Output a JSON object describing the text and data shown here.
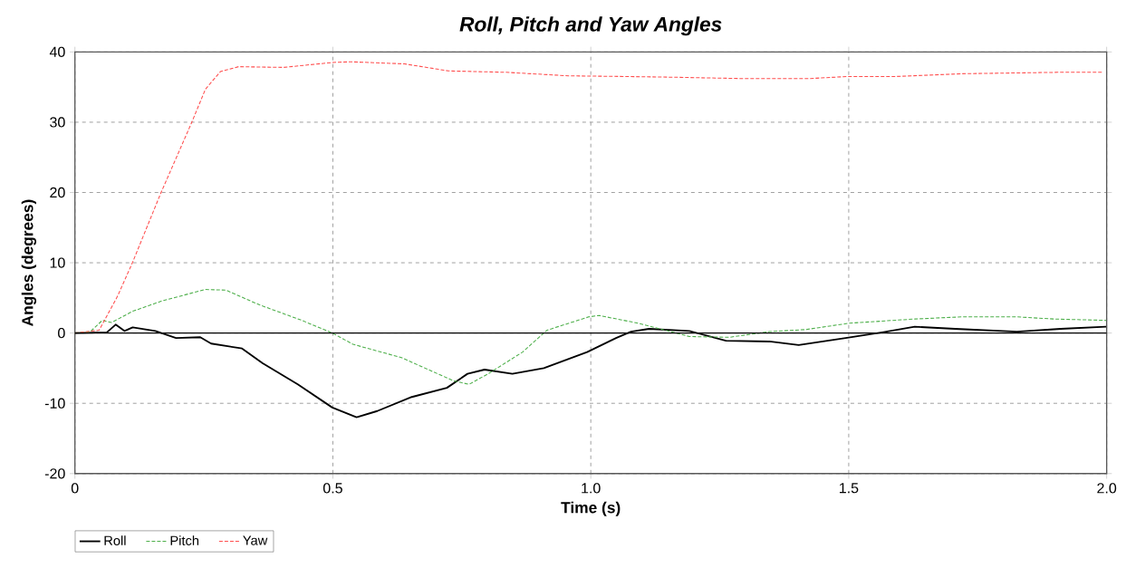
{
  "chart_data": {
    "type": "line",
    "title": "Roll, Pitch and Yaw Angles",
    "xlabel": "Time (s)",
    "ylabel": "Angles (degrees)",
    "xlim": [
      0,
      2.0
    ],
    "ylim": [
      -20,
      40
    ],
    "xticks": [
      {
        "value": 0,
        "label": "0"
      },
      {
        "value": 0.5,
        "label": "0.5"
      },
      {
        "value": 1.0,
        "label": "1.0"
      },
      {
        "value": 1.5,
        "label": "1.5"
      },
      {
        "value": 2.0,
        "label": "2.0"
      }
    ],
    "yticks": [
      -20,
      -10,
      0,
      10,
      20,
      30,
      40
    ],
    "grid": true,
    "legend": "bottom left",
    "ref_lines": [
      {
        "axis": "y",
        "value": 0,
        "color": "#000000",
        "line_style": "solid"
      }
    ],
    "series": [
      {
        "name": "Roll",
        "color": "#000000",
        "line_style": "solid",
        "x": [
          0,
          0.062,
          0.079,
          0.096,
          0.112,
          0.156,
          0.196,
          0.243,
          0.264,
          0.324,
          0.364,
          0.432,
          0.499,
          0.546,
          0.586,
          0.653,
          0.721,
          0.761,
          0.794,
          0.848,
          0.909,
          0.993,
          1.049,
          1.078,
          1.113,
          1.191,
          1.262,
          1.346,
          1.403,
          1.494,
          1.565,
          1.628,
          1.706,
          1.826,
          1.911,
          1.999
        ],
        "values": [
          0,
          0.1,
          1.2,
          0.3,
          0.8,
          0.3,
          -0.7,
          -0.6,
          -1.5,
          -2.2,
          -4.3,
          -7.3,
          -10.6,
          -12.0,
          -11.1,
          -9.1,
          -7.8,
          -5.8,
          -5.2,
          -5.8,
          -5.0,
          -2.7,
          -0.7,
          0.2,
          0.6,
          0.3,
          -1.1,
          -1.2,
          -1.7,
          -0.7,
          0.1,
          0.9,
          0.6,
          0.2,
          0.6,
          0.9
        ]
      },
      {
        "name": "Pitch",
        "color": "#4daf4a",
        "line_style": "dashed",
        "x": [
          0,
          0.03,
          0.053,
          0.071,
          0.112,
          0.17,
          0.253,
          0.293,
          0.358,
          0.44,
          0.499,
          0.539,
          0.633,
          0.734,
          0.764,
          0.801,
          0.868,
          0.915,
          0.996,
          1.016,
          1.092,
          1.191,
          1.269,
          1.346,
          1.417,
          1.501,
          1.628,
          1.72,
          1.826,
          1.897,
          1.999
        ],
        "values": [
          0,
          0.2,
          1.8,
          1.5,
          3.1,
          4.6,
          6.2,
          6.1,
          4.0,
          1.8,
          0,
          -1.6,
          -3.5,
          -6.8,
          -7.3,
          -5.8,
          -2.7,
          0.4,
          2.3,
          2.5,
          1.4,
          -0.5,
          -0.6,
          0.2,
          0.5,
          1.4,
          2.0,
          2.3,
          2.3,
          2.0,
          1.8
        ]
      },
      {
        "name": "Yaw",
        "color": "#ff4d4d",
        "line_style": "dashed",
        "x": [
          0,
          0.047,
          0.083,
          0.112,
          0.167,
          0.226,
          0.253,
          0.282,
          0.317,
          0.405,
          0.499,
          0.534,
          0.639,
          0.724,
          0.836,
          0.957,
          1.069,
          1.162,
          1.3,
          1.42,
          1.498,
          1.589,
          1.719,
          1.905,
          1.993
        ],
        "values": [
          0,
          0.4,
          5.3,
          10.1,
          20.0,
          29.9,
          34.7,
          37.2,
          37.9,
          37.8,
          38.5,
          38.6,
          38.3,
          37.3,
          37.1,
          36.6,
          36.5,
          36.4,
          36.2,
          36.2,
          36.5,
          36.5,
          36.9,
          37.1,
          37.1
        ]
      }
    ]
  }
}
